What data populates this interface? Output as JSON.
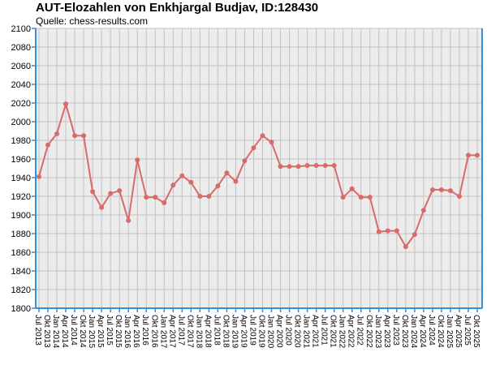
{
  "chart_data": {
    "type": "line",
    "title": "AUT-Elozahlen von Enkhjargal Budjav, ID:128430",
    "subtitle": "Quelle: chess-results.com",
    "xlabel": "",
    "ylabel": "",
    "ylim": [
      1800,
      2100
    ],
    "y_ticks": [
      1800,
      1820,
      1840,
      1860,
      1880,
      1900,
      1920,
      1940,
      1960,
      1980,
      2000,
      2020,
      2040,
      2060,
      2080,
      2100
    ],
    "grid": true,
    "colors": {
      "line": "#d96a6a",
      "plot_bg": "#ececec",
      "grid": "#c2c2c2",
      "axis": "#2f8fe0"
    },
    "categories": [
      "Jul 2013",
      "Okt 2013",
      "Jan 2014",
      "Apr 2014",
      "Jul 2014",
      "Okt 2014",
      "Jan 2015",
      "Apr 2015",
      "Jul 2015",
      "Okt 2015",
      "Jan 2016",
      "Apr 2016",
      "Jul 2016",
      "Okt 2016",
      "Jan 2017",
      "Apr 2017",
      "Jul 2017",
      "Okt 2017",
      "Jan 2018",
      "Apr 2018",
      "Jul 2018",
      "Okt 2018",
      "Jan 2019",
      "Apr 2019",
      "Jul 2019",
      "Okt 2019",
      "Jan 2020",
      "Apr 2020",
      "Jul 2020",
      "Okt 2020",
      "Jan 2021",
      "Apr 2021",
      "Jul 2021",
      "Okt 2021",
      "Jan 2022",
      "Apr 2022",
      "Jul 2022",
      "Okt 2022",
      "Jan 2023",
      "Apr 2023",
      "Jul 2023",
      "Okt 2023",
      "Jan 2024",
      "Apr 2024",
      "Jul 2024",
      "Okt 2024",
      "Jan 2025",
      "Apr 2025",
      "Jul 2025",
      "Okt 2025"
    ],
    "series": [
      {
        "values": [
          1941,
          1975,
          1987,
          2019,
          1985,
          1985,
          1925,
          1908,
          1923,
          1926,
          1894,
          1959,
          1919,
          1919,
          1913,
          1932,
          1942,
          1935,
          1920,
          1920,
          1931,
          1945,
          1936,
          1958,
          1972,
          1985,
          1978,
          1952,
          1952,
          1952,
          1953,
          1953,
          1953,
          1953,
          1919,
          1928,
          1919,
          1919,
          1882,
          1883,
          1883,
          1866,
          1879,
          1905,
          1927,
          1927,
          1926,
          1920,
          1964,
          1964
        ]
      }
    ]
  }
}
